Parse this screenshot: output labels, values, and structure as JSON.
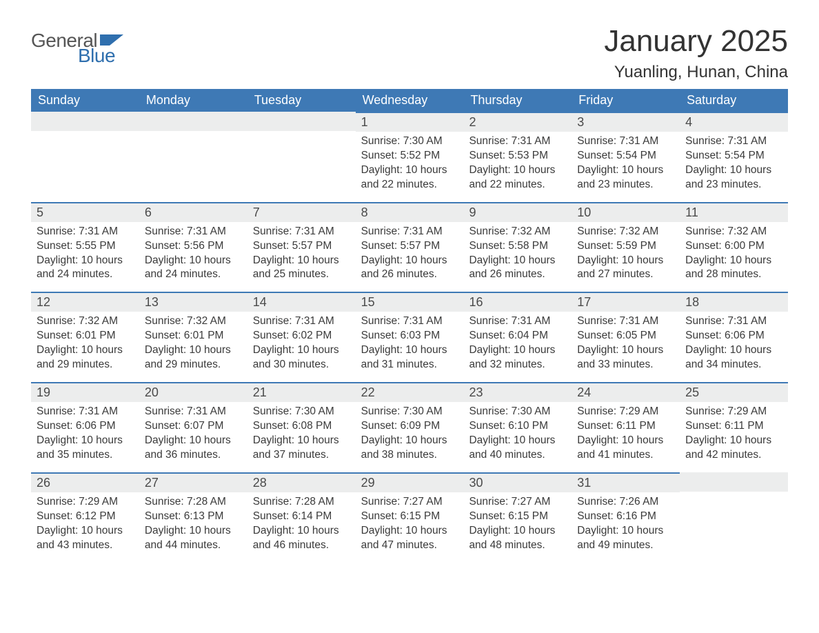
{
  "branding": {
    "logo_word1": "General",
    "logo_word2": "Blue",
    "logo_color_gray": "#6a6a6a",
    "logo_color_blue": "#2f6fae",
    "flag_color": "#2f6fae"
  },
  "header": {
    "month_title": "January 2025",
    "location": "Yuanling, Hunan, China"
  },
  "calendar": {
    "accent_color": "#3e79b5",
    "band_bg": "#eceded",
    "days_of_week": [
      "Sunday",
      "Monday",
      "Tuesday",
      "Wednesday",
      "Thursday",
      "Friday",
      "Saturday"
    ],
    "weeks": [
      [
        {
          "n": "",
          "sr": "",
          "ss": "",
          "dl": ""
        },
        {
          "n": "",
          "sr": "",
          "ss": "",
          "dl": ""
        },
        {
          "n": "",
          "sr": "",
          "ss": "",
          "dl": ""
        },
        {
          "n": "1",
          "sr": "Sunrise: 7:30 AM",
          "ss": "Sunset: 5:52 PM",
          "dl": "Daylight: 10 hours and 22 minutes."
        },
        {
          "n": "2",
          "sr": "Sunrise: 7:31 AM",
          "ss": "Sunset: 5:53 PM",
          "dl": "Daylight: 10 hours and 22 minutes."
        },
        {
          "n": "3",
          "sr": "Sunrise: 7:31 AM",
          "ss": "Sunset: 5:54 PM",
          "dl": "Daylight: 10 hours and 23 minutes."
        },
        {
          "n": "4",
          "sr": "Sunrise: 7:31 AM",
          "ss": "Sunset: 5:54 PM",
          "dl": "Daylight: 10 hours and 23 minutes."
        }
      ],
      [
        {
          "n": "5",
          "sr": "Sunrise: 7:31 AM",
          "ss": "Sunset: 5:55 PM",
          "dl": "Daylight: 10 hours and 24 minutes."
        },
        {
          "n": "6",
          "sr": "Sunrise: 7:31 AM",
          "ss": "Sunset: 5:56 PM",
          "dl": "Daylight: 10 hours and 24 minutes."
        },
        {
          "n": "7",
          "sr": "Sunrise: 7:31 AM",
          "ss": "Sunset: 5:57 PM",
          "dl": "Daylight: 10 hours and 25 minutes."
        },
        {
          "n": "8",
          "sr": "Sunrise: 7:31 AM",
          "ss": "Sunset: 5:57 PM",
          "dl": "Daylight: 10 hours and 26 minutes."
        },
        {
          "n": "9",
          "sr": "Sunrise: 7:32 AM",
          "ss": "Sunset: 5:58 PM",
          "dl": "Daylight: 10 hours and 26 minutes."
        },
        {
          "n": "10",
          "sr": "Sunrise: 7:32 AM",
          "ss": "Sunset: 5:59 PM",
          "dl": "Daylight: 10 hours and 27 minutes."
        },
        {
          "n": "11",
          "sr": "Sunrise: 7:32 AM",
          "ss": "Sunset: 6:00 PM",
          "dl": "Daylight: 10 hours and 28 minutes."
        }
      ],
      [
        {
          "n": "12",
          "sr": "Sunrise: 7:32 AM",
          "ss": "Sunset: 6:01 PM",
          "dl": "Daylight: 10 hours and 29 minutes."
        },
        {
          "n": "13",
          "sr": "Sunrise: 7:32 AM",
          "ss": "Sunset: 6:01 PM",
          "dl": "Daylight: 10 hours and 29 minutes."
        },
        {
          "n": "14",
          "sr": "Sunrise: 7:31 AM",
          "ss": "Sunset: 6:02 PM",
          "dl": "Daylight: 10 hours and 30 minutes."
        },
        {
          "n": "15",
          "sr": "Sunrise: 7:31 AM",
          "ss": "Sunset: 6:03 PM",
          "dl": "Daylight: 10 hours and 31 minutes."
        },
        {
          "n": "16",
          "sr": "Sunrise: 7:31 AM",
          "ss": "Sunset: 6:04 PM",
          "dl": "Daylight: 10 hours and 32 minutes."
        },
        {
          "n": "17",
          "sr": "Sunrise: 7:31 AM",
          "ss": "Sunset: 6:05 PM",
          "dl": "Daylight: 10 hours and 33 minutes."
        },
        {
          "n": "18",
          "sr": "Sunrise: 7:31 AM",
          "ss": "Sunset: 6:06 PM",
          "dl": "Daylight: 10 hours and 34 minutes."
        }
      ],
      [
        {
          "n": "19",
          "sr": "Sunrise: 7:31 AM",
          "ss": "Sunset: 6:06 PM",
          "dl": "Daylight: 10 hours and 35 minutes."
        },
        {
          "n": "20",
          "sr": "Sunrise: 7:31 AM",
          "ss": "Sunset: 6:07 PM",
          "dl": "Daylight: 10 hours and 36 minutes."
        },
        {
          "n": "21",
          "sr": "Sunrise: 7:30 AM",
          "ss": "Sunset: 6:08 PM",
          "dl": "Daylight: 10 hours and 37 minutes."
        },
        {
          "n": "22",
          "sr": "Sunrise: 7:30 AM",
          "ss": "Sunset: 6:09 PM",
          "dl": "Daylight: 10 hours and 38 minutes."
        },
        {
          "n": "23",
          "sr": "Sunrise: 7:30 AM",
          "ss": "Sunset: 6:10 PM",
          "dl": "Daylight: 10 hours and 40 minutes."
        },
        {
          "n": "24",
          "sr": "Sunrise: 7:29 AM",
          "ss": "Sunset: 6:11 PM",
          "dl": "Daylight: 10 hours and 41 minutes."
        },
        {
          "n": "25",
          "sr": "Sunrise: 7:29 AM",
          "ss": "Sunset: 6:11 PM",
          "dl": "Daylight: 10 hours and 42 minutes."
        }
      ],
      [
        {
          "n": "26",
          "sr": "Sunrise: 7:29 AM",
          "ss": "Sunset: 6:12 PM",
          "dl": "Daylight: 10 hours and 43 minutes."
        },
        {
          "n": "27",
          "sr": "Sunrise: 7:28 AM",
          "ss": "Sunset: 6:13 PM",
          "dl": "Daylight: 10 hours and 44 minutes."
        },
        {
          "n": "28",
          "sr": "Sunrise: 7:28 AM",
          "ss": "Sunset: 6:14 PM",
          "dl": "Daylight: 10 hours and 46 minutes."
        },
        {
          "n": "29",
          "sr": "Sunrise: 7:27 AM",
          "ss": "Sunset: 6:15 PM",
          "dl": "Daylight: 10 hours and 47 minutes."
        },
        {
          "n": "30",
          "sr": "Sunrise: 7:27 AM",
          "ss": "Sunset: 6:15 PM",
          "dl": "Daylight: 10 hours and 48 minutes."
        },
        {
          "n": "31",
          "sr": "Sunrise: 7:26 AM",
          "ss": "Sunset: 6:16 PM",
          "dl": "Daylight: 10 hours and 49 minutes."
        },
        {
          "n": "",
          "sr": "",
          "ss": "",
          "dl": ""
        }
      ]
    ]
  }
}
